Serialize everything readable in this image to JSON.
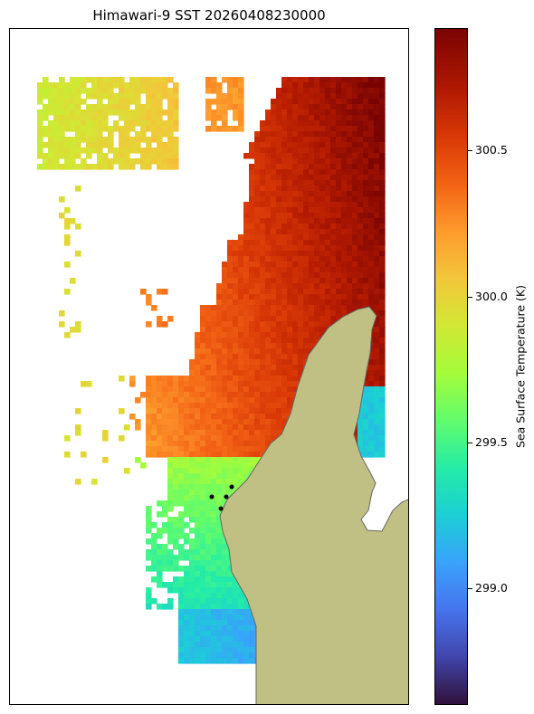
{
  "title": "Himawari-9 SST 20260408230000",
  "colorbar": {
    "label": "Sea Surface Temperature (K)",
    "ticks": [
      "299.0",
      "299.5",
      "300.0",
      "300.5"
    ],
    "tick_values": [
      299.0,
      299.5,
      300.0,
      300.5
    ],
    "range": [
      298.6,
      300.92
    ],
    "colormap": "turbo"
  },
  "map": {
    "land_color": "#c0c084",
    "coast_color": "#666666",
    "ocean_color": "#ffffff",
    "markers": [
      {
        "label": "station",
        "color": "#000000"
      },
      {
        "label": "station",
        "color": "#000000"
      },
      {
        "label": "station",
        "color": "#000000"
      },
      {
        "label": "station",
        "color": "#000000"
      }
    ]
  }
}
